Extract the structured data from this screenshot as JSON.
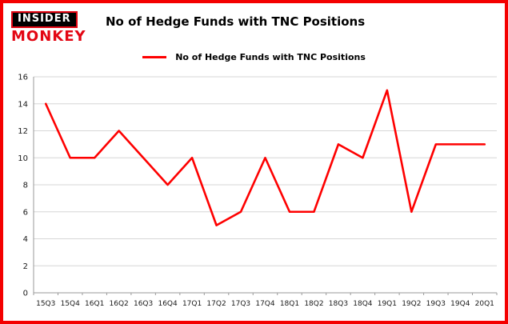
{
  "brand": {
    "insider": "INSIDER",
    "monkey": "MONKEY",
    "accent_red": "#e30613",
    "black": "#000000"
  },
  "header": {
    "title": "No of Hedge Funds with TNC Positions"
  },
  "legend": {
    "label": "No of Hedge Funds with TNC Positions",
    "line_color": "#fe0000"
  },
  "frame": {
    "border_color": "#f40000"
  },
  "chart_data": {
    "type": "line",
    "title": "No of Hedge Funds with TNC Positions",
    "series_name": "No of Hedge Funds with TNC Positions",
    "categories": [
      "15Q3",
      "15Q4",
      "16Q1",
      "16Q2",
      "16Q3",
      "16Q4",
      "17Q1",
      "17Q2",
      "17Q3",
      "17Q4",
      "18Q1",
      "18Q2",
      "18Q3",
      "18Q4",
      "19Q1",
      "19Q2",
      "19Q3",
      "19Q4",
      "20Q1"
    ],
    "values": [
      14,
      10,
      10,
      12,
      10,
      8,
      10,
      5,
      6,
      10,
      6,
      6,
      11,
      10,
      15,
      6,
      11,
      11,
      11
    ],
    "xlabel": "",
    "ylabel": "",
    "ylim": [
      0,
      16
    ],
    "ytick_step": 2,
    "grid": true,
    "legend_position": "top",
    "line_color": "#fe0000",
    "line_width": 2.6,
    "grid_color": "#d6d6d6",
    "axis_color": "#9a9a9a",
    "tick_label_color": "#1a1a1a"
  }
}
